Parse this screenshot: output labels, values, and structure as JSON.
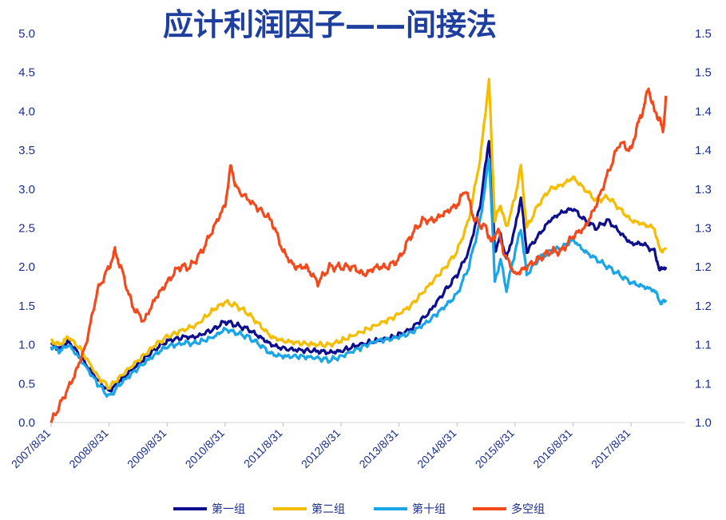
{
  "chart_data": {
    "type": "line",
    "title": "应计利润因子——间接法",
    "x_ticks": [
      "2007/8/31",
      "2008/8/31",
      "2009/8/31",
      "2010/8/31",
      "2011/8/31",
      "2012/8/31",
      "2013/8/31",
      "2014/8/31",
      "2015/8/31",
      "2016/8/31",
      "2017/8/31"
    ],
    "x_range": [
      "2007/8/31",
      "2018/7/31"
    ],
    "y_left": {
      "range": [
        0,
        5
      ],
      "ticks": [
        "0.0",
        "0.5",
        "1.0",
        "1.5",
        "2.0",
        "2.5",
        "3.0",
        "3.5",
        "4.0",
        "4.5",
        "5.0"
      ]
    },
    "y_right": {
      "range": [
        1.0,
        1.5
      ],
      "ticks": [
        "1.0",
        "1.1",
        "1.1",
        "1.2",
        "1.2",
        "1.3",
        "1.3",
        "1.4",
        "1.4",
        "1.5",
        "1.5"
      ]
    },
    "grid": false,
    "legend_position": "bottom",
    "series": [
      {
        "name": "第一组",
        "color": "#0d0f8c",
        "axis": "left",
        "points": [
          [
            0,
            1.0
          ],
          [
            0.15,
            0.95
          ],
          [
            0.3,
            1.05
          ],
          [
            0.5,
            0.85
          ],
          [
            0.8,
            0.55
          ],
          [
            1.0,
            0.4
          ],
          [
            1.2,
            0.55
          ],
          [
            1.5,
            0.75
          ],
          [
            1.8,
            0.95
          ],
          [
            2.0,
            1.05
          ],
          [
            2.3,
            1.1
          ],
          [
            2.5,
            1.1
          ],
          [
            2.8,
            1.2
          ],
          [
            3.0,
            1.3
          ],
          [
            3.2,
            1.25
          ],
          [
            3.4,
            1.2
          ],
          [
            3.6,
            1.1
          ],
          [
            3.8,
            1.0
          ],
          [
            4.0,
            0.95
          ],
          [
            4.3,
            0.93
          ],
          [
            4.6,
            0.92
          ],
          [
            4.8,
            0.9
          ],
          [
            5.0,
            0.92
          ],
          [
            5.3,
            1.0
          ],
          [
            5.6,
            1.05
          ],
          [
            5.9,
            1.1
          ],
          [
            6.2,
            1.2
          ],
          [
            6.5,
            1.4
          ],
          [
            6.8,
            1.7
          ],
          [
            7.0,
            1.9
          ],
          [
            7.2,
            2.2
          ],
          [
            7.4,
            2.8
          ],
          [
            7.55,
            3.65
          ],
          [
            7.6,
            3.0
          ],
          [
            7.65,
            2.2
          ],
          [
            7.75,
            2.4
          ],
          [
            7.85,
            2.1
          ],
          [
            8.0,
            2.5
          ],
          [
            8.1,
            2.9
          ],
          [
            8.2,
            2.2
          ],
          [
            8.4,
            2.4
          ],
          [
            8.6,
            2.6
          ],
          [
            8.8,
            2.7
          ],
          [
            9.0,
            2.75
          ],
          [
            9.2,
            2.6
          ],
          [
            9.4,
            2.5
          ],
          [
            9.6,
            2.6
          ],
          [
            9.8,
            2.45
          ],
          [
            10.0,
            2.3
          ],
          [
            10.2,
            2.3
          ],
          [
            10.4,
            2.2
          ],
          [
            10.5,
            1.95
          ],
          [
            10.6,
            2.0
          ]
        ]
      },
      {
        "name": "第二组",
        "color": "#f5bd00",
        "axis": "left",
        "points": [
          [
            0,
            1.05
          ],
          [
            0.15,
            1.0
          ],
          [
            0.3,
            1.1
          ],
          [
            0.5,
            0.95
          ],
          [
            0.8,
            0.6
          ],
          [
            1.0,
            0.45
          ],
          [
            1.2,
            0.6
          ],
          [
            1.5,
            0.8
          ],
          [
            1.8,
            1.0
          ],
          [
            2.0,
            1.1
          ],
          [
            2.3,
            1.2
          ],
          [
            2.5,
            1.25
          ],
          [
            2.8,
            1.45
          ],
          [
            3.0,
            1.55
          ],
          [
            3.2,
            1.5
          ],
          [
            3.4,
            1.4
          ],
          [
            3.6,
            1.25
          ],
          [
            3.8,
            1.1
          ],
          [
            4.0,
            1.05
          ],
          [
            4.3,
            1.02
          ],
          [
            4.6,
            1.0
          ],
          [
            4.8,
            1.0
          ],
          [
            5.0,
            1.05
          ],
          [
            5.3,
            1.15
          ],
          [
            5.6,
            1.25
          ],
          [
            5.9,
            1.35
          ],
          [
            6.2,
            1.5
          ],
          [
            6.5,
            1.75
          ],
          [
            6.8,
            2.0
          ],
          [
            7.0,
            2.2
          ],
          [
            7.2,
            2.6
          ],
          [
            7.4,
            3.4
          ],
          [
            7.55,
            4.4
          ],
          [
            7.6,
            3.5
          ],
          [
            7.65,
            2.6
          ],
          [
            7.75,
            2.8
          ],
          [
            7.85,
            2.5
          ],
          [
            8.0,
            2.9
          ],
          [
            8.1,
            3.3
          ],
          [
            8.2,
            2.5
          ],
          [
            8.4,
            2.8
          ],
          [
            8.6,
            3.0
          ],
          [
            8.8,
            3.05
          ],
          [
            9.0,
            3.15
          ],
          [
            9.2,
            3.0
          ],
          [
            9.4,
            2.85
          ],
          [
            9.6,
            2.9
          ],
          [
            9.8,
            2.75
          ],
          [
            10.0,
            2.6
          ],
          [
            10.2,
            2.55
          ],
          [
            10.4,
            2.5
          ],
          [
            10.5,
            2.2
          ],
          [
            10.6,
            2.25
          ]
        ]
      },
      {
        "name": "第十组",
        "color": "#1aa6e6",
        "axis": "left",
        "points": [
          [
            0,
            0.98
          ],
          [
            0.15,
            0.92
          ],
          [
            0.3,
            1.0
          ],
          [
            0.5,
            0.82
          ],
          [
            0.8,
            0.5
          ],
          [
            1.0,
            0.33
          ],
          [
            1.2,
            0.5
          ],
          [
            1.5,
            0.7
          ],
          [
            1.8,
            0.88
          ],
          [
            2.0,
            0.98
          ],
          [
            2.3,
            1.02
          ],
          [
            2.5,
            1.02
          ],
          [
            2.8,
            1.1
          ],
          [
            3.0,
            1.2
          ],
          [
            3.2,
            1.15
          ],
          [
            3.4,
            1.1
          ],
          [
            3.6,
            1.0
          ],
          [
            3.8,
            0.88
          ],
          [
            4.0,
            0.85
          ],
          [
            4.3,
            0.85
          ],
          [
            4.6,
            0.83
          ],
          [
            4.8,
            0.8
          ],
          [
            5.0,
            0.85
          ],
          [
            5.3,
            0.95
          ],
          [
            5.6,
            1.05
          ],
          [
            5.9,
            1.08
          ],
          [
            6.2,
            1.15
          ],
          [
            6.5,
            1.3
          ],
          [
            6.8,
            1.5
          ],
          [
            7.0,
            1.65
          ],
          [
            7.2,
            2.0
          ],
          [
            7.4,
            2.6
          ],
          [
            7.55,
            3.4
          ],
          [
            7.6,
            2.7
          ],
          [
            7.65,
            1.8
          ],
          [
            7.75,
            2.1
          ],
          [
            7.85,
            1.7
          ],
          [
            8.0,
            2.2
          ],
          [
            8.1,
            2.5
          ],
          [
            8.2,
            1.9
          ],
          [
            8.4,
            2.1
          ],
          [
            8.6,
            2.2
          ],
          [
            8.8,
            2.25
          ],
          [
            9.0,
            2.35
          ],
          [
            9.2,
            2.2
          ],
          [
            9.4,
            2.1
          ],
          [
            9.6,
            2.0
          ],
          [
            9.8,
            1.9
          ],
          [
            10.0,
            1.8
          ],
          [
            10.2,
            1.75
          ],
          [
            10.4,
            1.7
          ],
          [
            10.5,
            1.55
          ],
          [
            10.6,
            1.55
          ]
        ]
      },
      {
        "name": "多空组",
        "color": "#f24a1c",
        "axis": "right",
        "points": [
          [
            0,
            1.0
          ],
          [
            0.2,
            1.03
          ],
          [
            0.4,
            1.06
          ],
          [
            0.6,
            1.1
          ],
          [
            0.8,
            1.17
          ],
          [
            1.0,
            1.2
          ],
          [
            1.1,
            1.22
          ],
          [
            1.2,
            1.2
          ],
          [
            1.4,
            1.15
          ],
          [
            1.6,
            1.13
          ],
          [
            1.8,
            1.16
          ],
          [
            2.0,
            1.18
          ],
          [
            2.2,
            1.2
          ],
          [
            2.4,
            1.2
          ],
          [
            2.6,
            1.22
          ],
          [
            2.8,
            1.25
          ],
          [
            3.0,
            1.28
          ],
          [
            3.1,
            1.33
          ],
          [
            3.2,
            1.3
          ],
          [
            3.5,
            1.28
          ],
          [
            3.8,
            1.26
          ],
          [
            4.0,
            1.22
          ],
          [
            4.2,
            1.2
          ],
          [
            4.4,
            1.2
          ],
          [
            4.6,
            1.18
          ],
          [
            4.8,
            1.2
          ],
          [
            5.0,
            1.2
          ],
          [
            5.2,
            1.2
          ],
          [
            5.4,
            1.19
          ],
          [
            5.6,
            1.2
          ],
          [
            5.8,
            1.2
          ],
          [
            6.0,
            1.21
          ],
          [
            6.2,
            1.24
          ],
          [
            6.4,
            1.26
          ],
          [
            6.6,
            1.26
          ],
          [
            6.8,
            1.27
          ],
          [
            7.0,
            1.28
          ],
          [
            7.15,
            1.3
          ],
          [
            7.3,
            1.26
          ],
          [
            7.5,
            1.25
          ],
          [
            7.6,
            1.23
          ],
          [
            7.7,
            1.25
          ],
          [
            7.8,
            1.22
          ],
          [
            8.0,
            1.19
          ],
          [
            8.2,
            1.2
          ],
          [
            8.4,
            1.21
          ],
          [
            8.6,
            1.22
          ],
          [
            8.8,
            1.22
          ],
          [
            9.0,
            1.24
          ],
          [
            9.2,
            1.25
          ],
          [
            9.4,
            1.28
          ],
          [
            9.6,
            1.32
          ],
          [
            9.8,
            1.36
          ],
          [
            10.0,
            1.35
          ],
          [
            10.1,
            1.38
          ],
          [
            10.2,
            1.4
          ],
          [
            10.3,
            1.43
          ],
          [
            10.4,
            1.4
          ],
          [
            10.5,
            1.39
          ],
          [
            10.55,
            1.37
          ],
          [
            10.6,
            1.42
          ]
        ]
      }
    ]
  }
}
